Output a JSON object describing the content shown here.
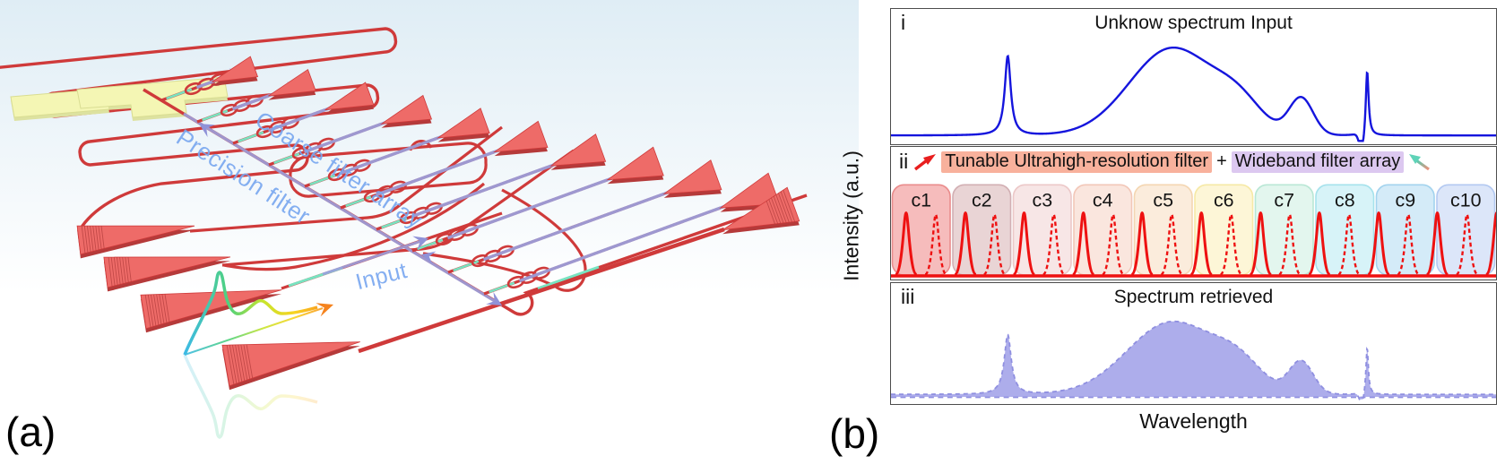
{
  "figure": {
    "panel_a_label": "(a)",
    "panel_b_label": "(b)"
  },
  "panel_a": {
    "labels": {
      "precision_filter": "Precision filter",
      "coarse_filter_array": "Coarse filter array",
      "input": "Input"
    },
    "colors": {
      "waveguide_red": "#cf3a3a",
      "coupler_red": "#ee6b68",
      "coupler_side_red": "#b53a3a",
      "pad_yellow": "#f4f6b4",
      "pad_edge_yellow": "#d9dd92",
      "flow_arrow_purple": "#9297dc",
      "waveguide_teal": "#77e4c1",
      "label_blue": "#7aa8f0",
      "background_top": "#dfedf5"
    }
  },
  "panel_b": {
    "ylabel": "Intensity (a.u.)",
    "xlabel": "Wavelength",
    "i": {
      "label": "i",
      "title": "Unknow spectrum Input"
    },
    "ii": {
      "label": "ii",
      "filter_label": "Tunable Ultrahigh-resolution filter",
      "plus": "+",
      "array_label": "Wideband filter array",
      "highlight_left": "#f8b19c",
      "highlight_right": "#dcc8f0",
      "channels": [
        "c1",
        "c2",
        "c3",
        "c4",
        "c5",
        "c6",
        "c7",
        "c8",
        "c9",
        "c10"
      ],
      "band_colors": [
        "#f2a2a2",
        "#e0c3c5",
        "#f4dcdc",
        "#f8dcd1",
        "#fae5cf",
        "#fcf3c8",
        "#d8f3e7",
        "#c8eff5",
        "#c3e3f5",
        "#cfdcf6"
      ],
      "band_borders": [
        "#ea8c8c",
        "#d2afb3",
        "#ecc8c8",
        "#f2c7b8",
        "#f4d6b2",
        "#f6e9a6",
        "#b9e7d5",
        "#a6e2ec",
        "#a3d3ee",
        "#b3c9f1"
      ],
      "peak_color": "#ee1111"
    },
    "iii": {
      "label": "iii",
      "title": "Spectrum retrieved",
      "fill": "#9898e6",
      "outline": "#8f8fe0"
    }
  },
  "chart_data": [
    {
      "type": "line",
      "id": "unknown-spectrum-input",
      "title": "Unknow spectrum Input",
      "xlabel": "Wavelength",
      "ylabel": "Intensity (a.u.)",
      "x_range": [
        0,
        1
      ],
      "grid": false,
      "color": "#1515dd",
      "baseline": 0.025,
      "peaks": [
        {
          "shape": "lorentz",
          "center": 0.193,
          "width": 0.006,
          "amplitude": 0.8
        },
        {
          "shape": "gauss",
          "center": 0.465,
          "width": 0.1,
          "amplitude": 0.88
        },
        {
          "shape": "gauss",
          "center": 0.575,
          "width": 0.055,
          "amplitude": 0.25
        },
        {
          "shape": "gauss",
          "center": 0.678,
          "width": 0.028,
          "amplitude": 0.37
        },
        {
          "shape": "gauss",
          "center": 0.778,
          "width": 0.006,
          "amplitude": -0.18
        },
        {
          "shape": "lorentz",
          "center": 0.787,
          "width": 0.0028,
          "amplitude": 0.66
        }
      ]
    },
    {
      "type": "line",
      "id": "filter-bank",
      "title": "Tunable Ultrahigh-resolution filter + Wideband filter array",
      "x_range": [
        0,
        1
      ],
      "channels": [
        {
          "label": "c1",
          "x_range": [
            0.0,
            0.1
          ]
        },
        {
          "label": "c2",
          "x_range": [
            0.1,
            0.2
          ]
        },
        {
          "label": "c3",
          "x_range": [
            0.2,
            0.3
          ]
        },
        {
          "label": "c4",
          "x_range": [
            0.3,
            0.4
          ]
        },
        {
          "label": "c5",
          "x_range": [
            0.4,
            0.5
          ]
        },
        {
          "label": "c6",
          "x_range": [
            0.5,
            0.6
          ]
        },
        {
          "label": "c7",
          "x_range": [
            0.6,
            0.7
          ]
        },
        {
          "label": "c8",
          "x_range": [
            0.7,
            0.8
          ]
        },
        {
          "label": "c9",
          "x_range": [
            0.8,
            0.9
          ]
        },
        {
          "label": "c10",
          "x_range": [
            0.9,
            1.0
          ]
        }
      ],
      "peaks": [
        {
          "x": 0.025,
          "style": "solid",
          "amplitude": 0.72
        },
        {
          "x": 0.074,
          "style": "dashed",
          "amplitude": 0.7
        },
        {
          "x": 0.123,
          "style": "solid",
          "amplitude": 0.72
        },
        {
          "x": 0.171,
          "style": "dashed",
          "amplitude": 0.7
        },
        {
          "x": 0.22,
          "style": "solid",
          "amplitude": 0.72
        },
        {
          "x": 0.269,
          "style": "dashed",
          "amplitude": 0.7
        },
        {
          "x": 0.318,
          "style": "solid",
          "amplitude": 0.72
        },
        {
          "x": 0.367,
          "style": "dashed",
          "amplitude": 0.7
        },
        {
          "x": 0.415,
          "style": "solid",
          "amplitude": 0.72
        },
        {
          "x": 0.464,
          "style": "dashed",
          "amplitude": 0.7
        },
        {
          "x": 0.513,
          "style": "solid",
          "amplitude": 0.72
        },
        {
          "x": 0.562,
          "style": "dashed",
          "amplitude": 0.7
        },
        {
          "x": 0.611,
          "style": "solid",
          "amplitude": 0.72
        },
        {
          "x": 0.659,
          "style": "dashed",
          "amplitude": 0.7
        },
        {
          "x": 0.708,
          "style": "solid",
          "amplitude": 0.72
        },
        {
          "x": 0.757,
          "style": "dashed",
          "amplitude": 0.7
        },
        {
          "x": 0.806,
          "style": "solid",
          "amplitude": 0.72
        },
        {
          "x": 0.855,
          "style": "dashed",
          "amplitude": 0.7
        },
        {
          "x": 0.903,
          "style": "solid",
          "amplitude": 0.72
        },
        {
          "x": 0.952,
          "style": "dashed",
          "amplitude": 0.7
        },
        {
          "x": 1.001,
          "style": "solid",
          "amplitude": 0.72
        }
      ]
    },
    {
      "type": "area",
      "id": "spectrum-retrieved",
      "title": "Spectrum retrieved",
      "xlabel": "Wavelength",
      "x_range": [
        0,
        1
      ],
      "color": "#9898e6",
      "baseline": 0.03,
      "peaks": [
        {
          "shape": "lorentz",
          "center": 0.193,
          "width": 0.007,
          "amplitude": 0.74
        },
        {
          "shape": "gauss",
          "center": 0.465,
          "width": 0.105,
          "amplitude": 0.9
        },
        {
          "shape": "gauss",
          "center": 0.575,
          "width": 0.055,
          "amplitude": 0.28
        },
        {
          "shape": "gauss",
          "center": 0.678,
          "width": 0.028,
          "amplitude": 0.4
        },
        {
          "shape": "gauss",
          "center": 0.778,
          "width": 0.005,
          "amplitude": -0.15
        },
        {
          "shape": "lorentz",
          "center": 0.787,
          "width": 0.0024,
          "amplitude": 0.58
        }
      ]
    }
  ]
}
